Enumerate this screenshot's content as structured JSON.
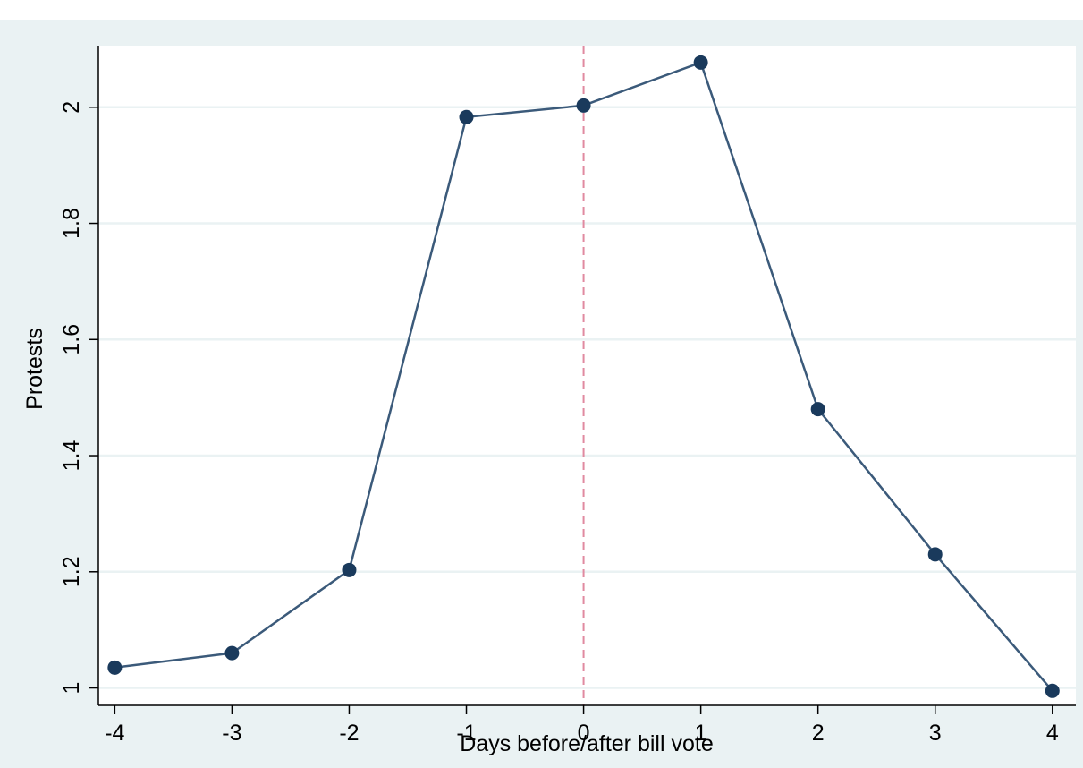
{
  "chart_data": {
    "type": "line",
    "title": "",
    "xlabel": "Days before/after bill vote",
    "ylabel": "Protests",
    "x": [
      -4,
      -3,
      -2,
      -1,
      0,
      1,
      2,
      3,
      4
    ],
    "series": [
      {
        "name": "",
        "values": [
          1.035,
          1.06,
          1.203,
          1.983,
          2.003,
          2.077,
          1.48,
          1.23,
          0.995
        ]
      }
    ],
    "xlim": [
      -4.14,
      4.2
    ],
    "ylim": [
      0.97,
      2.106
    ],
    "xticks": [
      -4,
      -3,
      -2,
      -1,
      0,
      1,
      2,
      3,
      4
    ],
    "xtick_labels": [
      "-4",
      "-3",
      "-2",
      "-1",
      "0",
      "1",
      "2",
      "3",
      "4"
    ],
    "yticks": [
      1,
      1.2,
      1.4,
      1.6,
      1.8,
      2
    ],
    "ytick_labels": [
      "1",
      "1.2",
      "1.4",
      "1.6",
      "1.8",
      "2"
    ],
    "grid": "horizontal",
    "reference_line": {
      "axis": "x",
      "value": 0,
      "style": "dashed"
    },
    "colors": {
      "outer_background": "#eaf2f3",
      "plot_background": "#ffffff",
      "line": "#3b5a7a",
      "marker": "#1a3a5c",
      "reference_line": "#e08aa0",
      "grid": "#eaf2f3"
    }
  }
}
